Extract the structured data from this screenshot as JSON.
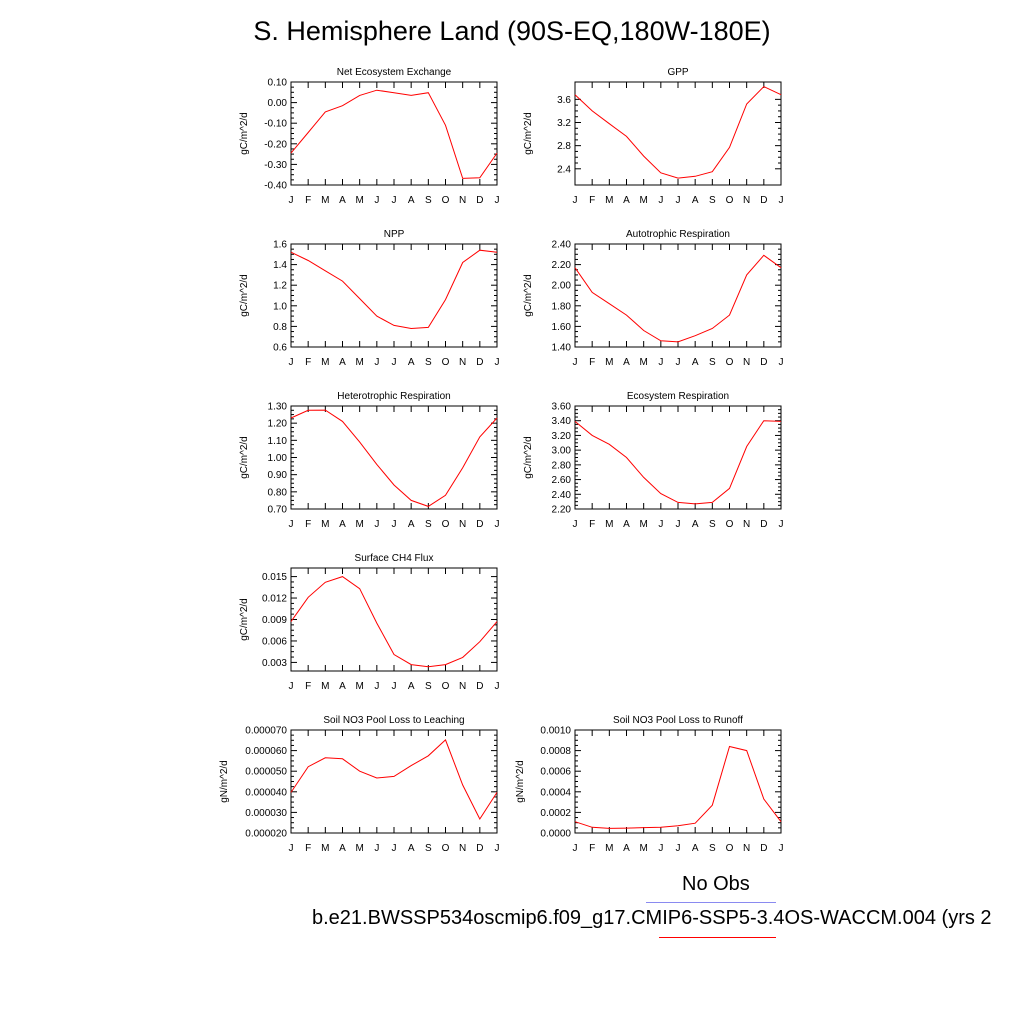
{
  "title": "S. Hemisphere Land (90S-EQ,180W-180E)",
  "month_labels": [
    "J",
    "F",
    "M",
    "A",
    "M",
    "J",
    "J",
    "A",
    "S",
    "O",
    "N",
    "D",
    "J"
  ],
  "colors": {
    "model": "#ff0000",
    "obs": "#8a8af0",
    "axis": "#000000"
  },
  "legend": {
    "obs_label": "No Obs",
    "case_label": "b.e21.BWSSP534oscmip6.f09_g17.CMIP6-SSP5-3.4OS-WACCM.004 (yrs 2"
  },
  "chart_data": [
    {
      "type": "line",
      "title": "Net Ecosystem Exchange",
      "ylabel": "gC/m^2/d",
      "ylim": [
        -0.4,
        0.1
      ],
      "yticks": [
        "-0.40",
        "-0.30",
        "-0.20",
        "-0.10",
        "0.00",
        "0.10"
      ],
      "x": [
        "J",
        "F",
        "M",
        "A",
        "M",
        "J",
        "J",
        "A",
        "S",
        "O",
        "N",
        "D",
        "J"
      ],
      "values": [
        -0.245,
        -0.145,
        -0.045,
        -0.015,
        0.035,
        0.06,
        0.048,
        0.035,
        0.048,
        -0.11,
        -0.368,
        -0.365,
        -0.245
      ]
    },
    {
      "type": "line",
      "title": "GPP",
      "ylabel": "gC/m^2/d",
      "ylim": [
        2.12,
        3.9
      ],
      "yticks": [
        "2.4",
        "2.8",
        "3.2",
        "3.6"
      ],
      "x": [
        "J",
        "F",
        "M",
        "A",
        "M",
        "J",
        "J",
        "A",
        "S",
        "O",
        "N",
        "D",
        "J"
      ],
      "values": [
        3.68,
        3.4,
        3.18,
        2.96,
        2.62,
        2.33,
        2.24,
        2.27,
        2.35,
        2.77,
        3.52,
        3.82,
        3.68
      ]
    },
    {
      "type": "line",
      "title": "NPP",
      "ylabel": "gC/m^2/d",
      "ylim": [
        0.6,
        1.6
      ],
      "yticks": [
        "0.6",
        "0.8",
        "1.0",
        "1.2",
        "1.4",
        "1.6"
      ],
      "x": [
        "J",
        "F",
        "M",
        "A",
        "M",
        "J",
        "J",
        "A",
        "S",
        "O",
        "N",
        "D",
        "J"
      ],
      "values": [
        1.52,
        1.44,
        1.34,
        1.24,
        1.07,
        0.9,
        0.81,
        0.78,
        0.79,
        1.06,
        1.42,
        1.54,
        1.52
      ]
    },
    {
      "type": "line",
      "title": "Autotrophic Respiration",
      "ylabel": "gC/m^2/d",
      "ylim": [
        1.4,
        2.4
      ],
      "yticks": [
        "1.40",
        "1.60",
        "1.80",
        "2.00",
        "2.20",
        "2.40"
      ],
      "x": [
        "J",
        "F",
        "M",
        "A",
        "M",
        "J",
        "J",
        "A",
        "S",
        "O",
        "N",
        "D",
        "J"
      ],
      "values": [
        2.17,
        1.93,
        1.82,
        1.71,
        1.56,
        1.46,
        1.45,
        1.51,
        1.58,
        1.71,
        2.1,
        2.29,
        2.17
      ]
    },
    {
      "type": "line",
      "title": "Heterotrophic Respiration",
      "ylabel": "gC/m^2/d",
      "ylim": [
        0.7,
        1.3
      ],
      "yticks": [
        "0.70",
        "0.80",
        "0.90",
        "1.00",
        "1.10",
        "1.20",
        "1.30"
      ],
      "x": [
        "J",
        "F",
        "M",
        "A",
        "M",
        "J",
        "J",
        "A",
        "S",
        "O",
        "N",
        "D",
        "J"
      ],
      "values": [
        1.23,
        1.275,
        1.276,
        1.21,
        1.09,
        0.96,
        0.84,
        0.75,
        0.715,
        0.78,
        0.94,
        1.12,
        1.23
      ]
    },
    {
      "type": "line",
      "title": "Ecosystem Respiration",
      "ylabel": "gC/m^2/d",
      "ylim": [
        2.2,
        3.6
      ],
      "yticks": [
        "2.20",
        "2.40",
        "2.60",
        "2.80",
        "3.00",
        "3.20",
        "3.40",
        "3.60"
      ],
      "x": [
        "J",
        "F",
        "M",
        "A",
        "M",
        "J",
        "J",
        "A",
        "S",
        "O",
        "N",
        "D",
        "J"
      ],
      "values": [
        3.39,
        3.2,
        3.08,
        2.9,
        2.63,
        2.41,
        2.29,
        2.27,
        2.29,
        2.48,
        3.05,
        3.4,
        3.39
      ]
    },
    {
      "type": "line",
      "title": "Surface CH4 Flux",
      "ylabel": "gC/m^2/d",
      "ylim": [
        0.0018,
        0.0162
      ],
      "yticks": [
        "0.003",
        "0.006",
        "0.009",
        "0.012",
        "0.015"
      ],
      "x": [
        "J",
        "F",
        "M",
        "A",
        "M",
        "J",
        "J",
        "A",
        "S",
        "O",
        "N",
        "D",
        "J"
      ],
      "values": [
        0.0087,
        0.0121,
        0.0142,
        0.015,
        0.0133,
        0.0085,
        0.0041,
        0.0027,
        0.0024,
        0.0027,
        0.0037,
        0.0059,
        0.0087
      ]
    },
    {
      "type": "line",
      "title": "Soil NO3 Pool Loss to Leaching",
      "ylabel": "gN/m^2/d",
      "ylim": [
        2e-05,
        7e-05
      ],
      "yticks": [
        "0.000020",
        "0.000030",
        "0.000040",
        "0.000050",
        "0.000060",
        "0.000070"
      ],
      "x": [
        "J",
        "F",
        "M",
        "A",
        "M",
        "J",
        "J",
        "A",
        "S",
        "O",
        "N",
        "D",
        "J"
      ],
      "values": [
        3.97e-05,
        5.22e-05,
        5.65e-05,
        5.6e-05,
        5e-05,
        4.67e-05,
        4.75e-05,
        5.27e-05,
        5.75e-05,
        6.52e-05,
        4.33e-05,
        2.68e-05,
        3.97e-05
      ]
    },
    {
      "type": "line",
      "title": "Soil NO3 Pool Loss to Runoff",
      "ylabel": "gN/m^2/d",
      "ylim": [
        0.0,
        0.001
      ],
      "yticks": [
        "0.0000",
        "0.0002",
        "0.0004",
        "0.0006",
        "0.0008",
        "0.0010"
      ],
      "x": [
        "J",
        "F",
        "M",
        "A",
        "M",
        "J",
        "J",
        "A",
        "S",
        "O",
        "N",
        "D",
        "J"
      ],
      "values": [
        0.00011,
        5.5e-05,
        4.5e-05,
        4.8e-05,
        5.2e-05,
        5.5e-05,
        7e-05,
        9.5e-05,
        0.00027,
        0.00084,
        0.0008,
        0.00033,
        0.00011
      ]
    }
  ]
}
